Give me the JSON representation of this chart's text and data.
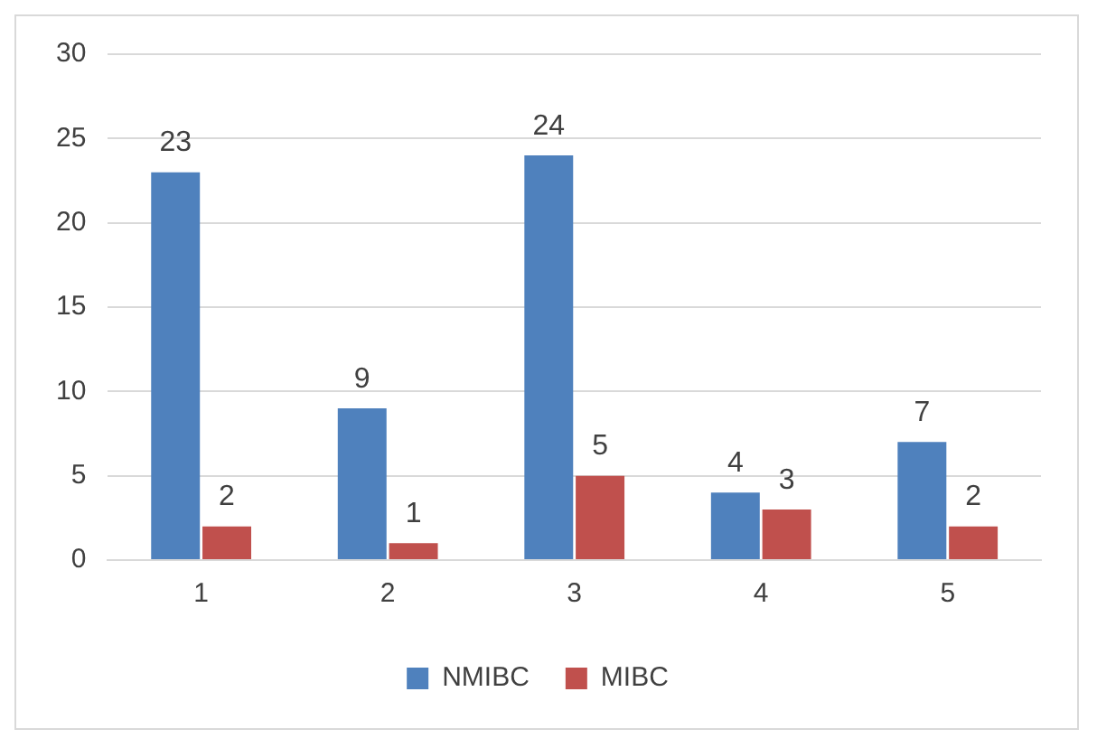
{
  "chart_data": {
    "type": "bar",
    "categories": [
      "1",
      "2",
      "3",
      "4",
      "5"
    ],
    "series": [
      {
        "name": "NMIBC",
        "color": "#4f81bd",
        "values": [
          23,
          9,
          24,
          4,
          7
        ]
      },
      {
        "name": "MIBC",
        "color": "#c0504d",
        "values": [
          2,
          1,
          5,
          3,
          2
        ]
      }
    ],
    "ylim": [
      0,
      30
    ],
    "yticks": [
      0,
      5,
      10,
      15,
      20,
      25,
      30
    ],
    "grid": "y",
    "legend": "bottom",
    "data_labels": true
  }
}
